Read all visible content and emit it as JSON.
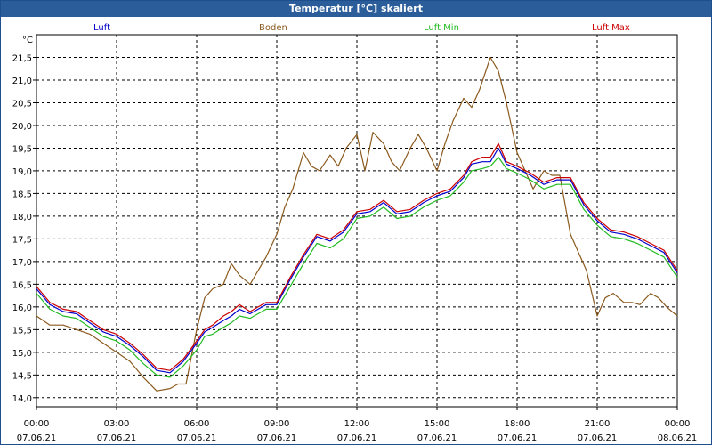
{
  "window": {
    "title": "Temperatur [°C] skaliert"
  },
  "chart_data": {
    "type": "line",
    "title": "Temperatur [°C] skaliert",
    "ylabel": "°C",
    "ylim": [
      13.8,
      22.0
    ],
    "xlim": [
      0,
      24
    ],
    "y_ticks": [
      14.0,
      14.5,
      15.0,
      15.5,
      16.0,
      16.5,
      17.0,
      17.5,
      18.0,
      18.5,
      19.0,
      19.5,
      20.0,
      20.5,
      21.0,
      21.5
    ],
    "y_tick_labels": [
      "14,0",
      "14,5",
      "15,0",
      "15,5",
      "16,0",
      "16,5",
      "17,0",
      "17,5",
      "18,0",
      "18,5",
      "19,0",
      "19,5",
      "20,0",
      "20,5",
      "21,0",
      "21,5"
    ],
    "x_ticks": [
      {
        "hour": 0,
        "time": "00:00",
        "date": "07.06.21"
      },
      {
        "hour": 3,
        "time": "03:00",
        "date": "07.06.21"
      },
      {
        "hour": 6,
        "time": "06:00",
        "date": "07.06.21"
      },
      {
        "hour": 9,
        "time": "09:00",
        "date": "07.06.21"
      },
      {
        "hour": 12,
        "time": "12:00",
        "date": "07.06.21"
      },
      {
        "hour": 15,
        "time": "15:00",
        "date": "07.06.21"
      },
      {
        "hour": 18,
        "time": "18:00",
        "date": "07.06.21"
      },
      {
        "hour": 21,
        "time": "21:00",
        "date": "07.06.21"
      },
      {
        "hour": 24,
        "time": "00:00",
        "date": "08.06.21"
      }
    ],
    "grid": true,
    "series": [
      {
        "name": "Luft",
        "color": "#0000cc",
        "x": [
          0,
          0.5,
          1,
          1.5,
          2,
          2.5,
          3,
          3.5,
          4,
          4.5,
          5,
          5.5,
          6,
          6.3,
          6.6,
          7,
          7.3,
          7.6,
          8,
          8.3,
          8.6,
          9,
          9.5,
          10,
          10.5,
          11,
          11.5,
          12,
          12.5,
          13,
          13.5,
          14,
          14.5,
          15,
          15.5,
          16,
          16.3,
          16.7,
          17,
          17.3,
          17.6,
          18,
          18.5,
          19,
          19.5,
          20,
          20.5,
          21,
          21.5,
          22,
          22.5,
          23,
          23.5,
          24
        ],
        "values": [
          16.4,
          16.05,
          15.9,
          15.85,
          15.65,
          15.45,
          15.35,
          15.15,
          14.9,
          14.6,
          14.55,
          14.8,
          15.2,
          15.45,
          15.55,
          15.7,
          15.8,
          15.95,
          15.85,
          15.95,
          16.05,
          16.05,
          16.6,
          17.1,
          17.55,
          17.45,
          17.65,
          18.05,
          18.1,
          18.3,
          18.05,
          18.1,
          18.3,
          18.45,
          18.55,
          18.85,
          19.15,
          19.2,
          19.2,
          19.5,
          19.15,
          19.05,
          18.9,
          18.7,
          18.8,
          18.8,
          18.25,
          17.9,
          17.65,
          17.6,
          17.5,
          17.35,
          17.2,
          16.75
        ]
      },
      {
        "name": "Boden",
        "color": "#8b5a1e",
        "x": [
          0,
          0.5,
          1,
          1.5,
          2,
          2.5,
          3,
          3.5,
          4,
          4.5,
          5,
          5.3,
          5.6,
          6,
          6.3,
          6.6,
          7,
          7.3,
          7.6,
          8,
          8.3,
          8.6,
          9,
          9.3,
          9.6,
          10,
          10.3,
          10.6,
          11,
          11.3,
          11.6,
          12,
          12.3,
          12.6,
          13,
          13.3,
          13.6,
          14,
          14.3,
          14.6,
          15,
          15.3,
          15.6,
          16,
          16.3,
          16.6,
          17,
          17.3,
          17.6,
          18,
          18.3,
          18.6,
          19,
          19.3,
          19.6,
          20,
          20.3,
          20.6,
          21,
          21.3,
          21.6,
          22,
          22.3,
          22.6,
          23,
          23.3,
          23.6,
          24
        ],
        "values": [
          15.8,
          15.6,
          15.6,
          15.5,
          15.4,
          15.2,
          15.0,
          14.8,
          14.45,
          14.15,
          14.2,
          14.3,
          14.3,
          15.5,
          16.2,
          16.4,
          16.5,
          16.95,
          16.7,
          16.5,
          16.8,
          17.1,
          17.6,
          18.2,
          18.6,
          19.4,
          19.1,
          19.0,
          19.35,
          19.1,
          19.5,
          19.8,
          19.0,
          19.85,
          19.6,
          19.2,
          19.0,
          19.5,
          19.8,
          19.5,
          19.0,
          19.6,
          20.1,
          20.6,
          20.4,
          20.8,
          21.5,
          21.2,
          20.5,
          19.4,
          19.0,
          18.6,
          19.0,
          18.9,
          18.9,
          17.6,
          17.2,
          16.8,
          15.8,
          16.2,
          16.3,
          16.1,
          16.1,
          16.05,
          16.3,
          16.2,
          16.0,
          15.8
        ]
      },
      {
        "name": "Luft Min",
        "color": "#22bb22",
        "x": [
          0,
          0.5,
          1,
          1.5,
          2,
          2.5,
          3,
          3.5,
          4,
          4.5,
          5,
          5.5,
          6,
          6.3,
          6.6,
          7,
          7.3,
          7.6,
          8,
          8.3,
          8.6,
          9,
          9.5,
          10,
          10.5,
          11,
          11.5,
          12,
          12.5,
          13,
          13.5,
          14,
          14.5,
          15,
          15.5,
          16,
          16.3,
          16.7,
          17,
          17.3,
          17.6,
          18,
          18.5,
          19,
          19.5,
          20,
          20.5,
          21,
          21.5,
          22,
          22.5,
          23,
          23.5,
          24
        ],
        "values": [
          16.3,
          15.95,
          15.8,
          15.75,
          15.55,
          15.35,
          15.25,
          15.05,
          14.75,
          14.5,
          14.45,
          14.7,
          15.05,
          15.35,
          15.4,
          15.55,
          15.65,
          15.8,
          15.75,
          15.85,
          15.95,
          15.95,
          16.45,
          16.95,
          17.4,
          17.3,
          17.5,
          17.95,
          18.0,
          18.2,
          17.95,
          18.0,
          18.2,
          18.35,
          18.45,
          18.75,
          19.0,
          19.05,
          19.1,
          19.3,
          19.05,
          18.95,
          18.8,
          18.6,
          18.7,
          18.7,
          18.15,
          17.8,
          17.55,
          17.5,
          17.4,
          17.25,
          17.1,
          16.65
        ]
      },
      {
        "name": "Luft Max",
        "color": "#cc0000",
        "x": [
          0,
          0.5,
          1,
          1.5,
          2,
          2.5,
          3,
          3.5,
          4,
          4.5,
          5,
          5.5,
          6,
          6.3,
          6.6,
          7,
          7.3,
          7.6,
          8,
          8.3,
          8.6,
          9,
          9.5,
          10,
          10.5,
          11,
          11.5,
          12,
          12.5,
          13,
          13.5,
          14,
          14.5,
          15,
          15.5,
          16,
          16.3,
          16.7,
          17,
          17.3,
          17.6,
          18,
          18.5,
          19,
          19.5,
          20,
          20.5,
          21,
          21.5,
          22,
          22.5,
          23,
          23.5,
          24
        ],
        "values": [
          16.45,
          16.1,
          15.95,
          15.9,
          15.7,
          15.5,
          15.4,
          15.2,
          14.95,
          14.65,
          14.6,
          14.85,
          15.25,
          15.5,
          15.6,
          15.8,
          15.9,
          16.05,
          15.9,
          16.0,
          16.1,
          16.1,
          16.65,
          17.15,
          17.6,
          17.5,
          17.7,
          18.1,
          18.15,
          18.35,
          18.1,
          18.15,
          18.35,
          18.5,
          18.6,
          18.9,
          19.2,
          19.3,
          19.3,
          19.6,
          19.2,
          19.1,
          18.95,
          18.75,
          18.85,
          18.85,
          18.3,
          17.95,
          17.7,
          17.65,
          17.55,
          17.4,
          17.25,
          16.8
        ]
      }
    ]
  }
}
